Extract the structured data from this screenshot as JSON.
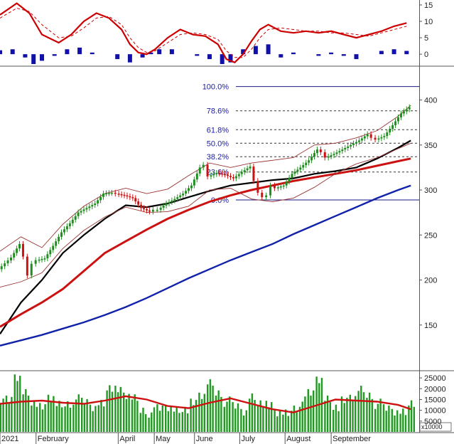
{
  "chart_data": [
    {
      "type": "line",
      "panel": "oscillator",
      "y_ticks": [
        "15",
        "10",
        "5",
        "0"
      ],
      "ylim": [
        -3,
        16.5
      ],
      "x_range": [
        0,
        100
      ],
      "series": [
        {
          "color": "#cc0000",
          "style": "solid",
          "x": [
            0,
            4,
            7,
            10,
            14,
            17,
            20,
            23,
            26,
            29,
            31,
            33,
            35,
            37,
            40,
            43,
            46,
            49,
            52,
            54,
            56,
            58,
            60,
            62,
            64,
            67,
            70,
            73,
            76,
            79,
            82,
            85,
            88,
            91,
            94,
            97
          ],
          "y": [
            12,
            15.5,
            12.5,
            6,
            3.5,
            6,
            10,
            12.5,
            11,
            7.5,
            3,
            0.5,
            0,
            1.5,
            5,
            7.5,
            6,
            5.5,
            3,
            -1.5,
            -2.5,
            0,
            4,
            7.5,
            9,
            7,
            6.5,
            7,
            6.5,
            7,
            6,
            5,
            6,
            7,
            8.5,
            9.5
          ]
        },
        {
          "color": "#cc0000",
          "style": "dashed",
          "x": [
            0,
            4,
            7,
            10,
            14,
            17,
            20,
            23,
            26,
            29,
            31,
            33,
            35,
            37,
            40,
            43,
            46,
            49,
            52,
            54,
            56,
            58,
            60,
            62,
            64,
            67,
            70,
            73,
            76,
            79,
            82,
            85,
            88,
            91,
            94,
            97
          ],
          "y": [
            11,
            14,
            13,
            9,
            5,
            5.5,
            8,
            11,
            11.5,
            9,
            5,
            2,
            0.5,
            1,
            3.5,
            6,
            6.5,
            6,
            4.5,
            1,
            -1,
            -1,
            1.5,
            5,
            7.5,
            8,
            7.5,
            7,
            7,
            6.5,
            6.5,
            6,
            5.5,
            6.5,
            7.5,
            8.5
          ]
        }
      ],
      "histogram": {
        "color": "#1111aa",
        "x": [
          0,
          3,
          6,
          8,
          10,
          13,
          16,
          19,
          22,
          25,
          28,
          31,
          34,
          36,
          38,
          41,
          44,
          47,
          50,
          53,
          55,
          58,
          61,
          64,
          67,
          70,
          73,
          76,
          79,
          82,
          85,
          88,
          91,
          94,
          97
        ],
        "y": [
          1.2,
          1.5,
          -1,
          -3,
          -2,
          -0.5,
          1.5,
          2,
          0.5,
          0,
          -1.5,
          -2.5,
          -1,
          0.5,
          1.5,
          1.5,
          0,
          -0.5,
          -1.5,
          -3,
          -2.5,
          1.5,
          2.5,
          3,
          -1,
          0.5,
          0,
          -0.5,
          0.5,
          -0.5,
          -1.5,
          0,
          1,
          1.5,
          1
        ]
      }
    },
    {
      "type": "line",
      "panel": "price",
      "y_ticks": [
        "400",
        "350",
        "300",
        "250",
        "200",
        "150"
      ],
      "ylim": [
        100,
        436
      ],
      "x_range": [
        0,
        100
      ],
      "series": [
        {
          "name": "close",
          "color": "#228822",
          "x": [
            0,
            3,
            5,
            6,
            7,
            8,
            9,
            11,
            13,
            15,
            17,
            19,
            21,
            23,
            25,
            27,
            28,
            30,
            32,
            34,
            36,
            37,
            38,
            40,
            42,
            44,
            46,
            48,
            49,
            50,
            52,
            54,
            56,
            58,
            60,
            61,
            62,
            63,
            64,
            65,
            66,
            68,
            70,
            72,
            74,
            76,
            77,
            78,
            80,
            82,
            84,
            86,
            88,
            89,
            90,
            92,
            94,
            96,
            98
          ],
          "y": [
            212,
            225,
            240,
            226,
            205,
            218,
            222,
            224,
            238,
            253,
            263,
            275,
            280,
            285,
            296,
            297,
            296,
            294,
            291,
            280,
            276,
            278,
            278,
            285,
            290,
            296,
            305,
            325,
            328,
            315,
            319,
            317,
            313,
            320,
            326,
            310,
            297,
            292,
            294,
            305,
            302,
            305,
            318,
            325,
            333,
            345,
            342,
            336,
            340,
            345,
            350,
            355,
            362,
            358,
            356,
            360,
            372,
            385,
            392
          ]
        },
        {
          "name": "ma-fast",
          "color": "#000000",
          "x": [
            0,
            5,
            10,
            15,
            20,
            25,
            30,
            35,
            40,
            45,
            50,
            55,
            60,
            65,
            70,
            75,
            80,
            85,
            90,
            95,
            98
          ],
          "y": [
            140,
            175,
            200,
            230,
            250,
            268,
            283,
            281,
            285,
            292,
            299,
            305,
            308,
            311,
            313,
            318,
            321,
            325,
            335,
            347,
            355
          ]
        },
        {
          "name": "ma-mid",
          "color": "#cc1111",
          "x": [
            0,
            5,
            10,
            15,
            20,
            25,
            30,
            35,
            40,
            45,
            50,
            55,
            60,
            65,
            70,
            75,
            80,
            85,
            90,
            95,
            98
          ],
          "y": [
            148,
            162,
            175,
            190,
            210,
            230,
            243,
            256,
            268,
            278,
            287,
            294,
            300,
            305,
            310,
            314,
            318,
            322,
            327,
            332,
            335
          ]
        },
        {
          "name": "ma-slow",
          "color": "#1122aa",
          "x": [
            0,
            5,
            10,
            15,
            20,
            25,
            30,
            35,
            40,
            45,
            50,
            55,
            60,
            65,
            70,
            75,
            80,
            85,
            90,
            95,
            98
          ],
          "y": [
            127,
            133,
            139,
            146,
            153,
            161,
            170,
            180,
            191,
            202,
            212,
            222,
            231,
            240,
            251,
            261,
            271,
            281,
            291,
            300,
            305
          ]
        },
        {
          "name": "band-upper",
          "color": "#993333",
          "style": "thin",
          "x": [
            0,
            5,
            10,
            15,
            20,
            25,
            30,
            35,
            40,
            45,
            50,
            55,
            60,
            65,
            70,
            75,
            80,
            85,
            90,
            95,
            98
          ],
          "y": [
            232,
            248,
            236,
            262,
            282,
            296,
            302,
            296,
            301,
            316,
            330,
            325,
            330,
            333,
            336,
            350,
            352,
            358,
            366,
            382,
            394
          ]
        },
        {
          "name": "band-lower",
          "color": "#993333",
          "style": "thin",
          "x": [
            0,
            5,
            10,
            15,
            20,
            25,
            30,
            35,
            40,
            45,
            50,
            55,
            60,
            65,
            70,
            75,
            80,
            85,
            90,
            95,
            98
          ],
          "y": [
            192,
            198,
            208,
            235,
            255,
            270,
            281,
            275,
            276,
            282,
            300,
            302,
            290,
            287,
            291,
            303,
            318,
            329,
            336,
            346,
            352
          ]
        }
      ],
      "fib_levels": [
        {
          "label": "100.0%",
          "value": 415,
          "style": "solid"
        },
        {
          "label": "78.6%",
          "value": 388,
          "style": "dashed"
        },
        {
          "label": "61.8%",
          "value": 367,
          "style": "dashed"
        },
        {
          "label": "50.0%",
          "value": 352,
          "style": "dashed"
        },
        {
          "label": "38.2%",
          "value": 337,
          "style": "dashed"
        },
        {
          "label": "23.6%",
          "value": 320,
          "style": "dashed"
        },
        {
          "label": "0.0%",
          "value": 289,
          "style": "solid"
        }
      ]
    },
    {
      "type": "bar",
      "panel": "volume",
      "y_ticks": [
        "25000",
        "20000",
        "15000",
        "10000",
        "5000"
      ],
      "ylim": [
        0,
        28000
      ],
      "axis_note": "x10000",
      "x_range": [
        0,
        100
      ],
      "bars": {
        "color": "#229922",
        "x": [
          0,
          2,
          4,
          6,
          8,
          10,
          12,
          14,
          16,
          18,
          20,
          22,
          24,
          26,
          28,
          30,
          32,
          34,
          36,
          38,
          40,
          42,
          44,
          46,
          48,
          50,
          52,
          54,
          56,
          58,
          60,
          62,
          64,
          66,
          68,
          70,
          72,
          74,
          76,
          78,
          80,
          82,
          84,
          86,
          88,
          90,
          92,
          94,
          96,
          98
        ],
        "y": [
          13000,
          15000,
          26000,
          18000,
          14000,
          11000,
          16000,
          12000,
          13000,
          15000,
          14000,
          12000,
          13000,
          21000,
          19000,
          17000,
          15000,
          10000,
          9000,
          11000,
          12000,
          10000,
          11000,
          13000,
          17000,
          22000,
          18000,
          14000,
          12000,
          10000,
          16000,
          14000,
          12000,
          9000,
          8000,
          11000,
          14000,
          18000,
          25000,
          15000,
          12000,
          14000,
          16000,
          19000,
          17000,
          13000,
          11000,
          10000,
          9000,
          14000
        ]
      },
      "series": [
        {
          "color": "#cc1111",
          "x": [
            0,
            5,
            10,
            15,
            20,
            25,
            30,
            35,
            40,
            45,
            50,
            55,
            60,
            65,
            70,
            75,
            80,
            85,
            90,
            95,
            98
          ],
          "y": [
            13000,
            14000,
            14500,
            13500,
            13000,
            14500,
            16500,
            15000,
            12000,
            11000,
            13500,
            15500,
            13000,
            10500,
            9000,
            12000,
            15000,
            14500,
            14000,
            12500,
            10500
          ]
        }
      ]
    }
  ],
  "x_axis": {
    "labels": [
      "2021",
      "February",
      "April",
      "May",
      "June",
      "July",
      "August",
      "September"
    ],
    "positions": [
      0,
      8.6,
      28.2,
      36.8,
      46.4,
      57.2,
      68,
      79
    ]
  }
}
